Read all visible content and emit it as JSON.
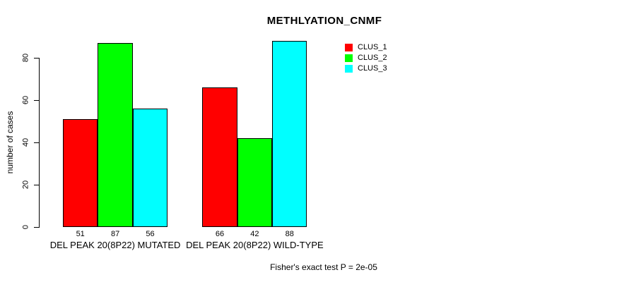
{
  "chart_data": {
    "type": "bar",
    "title": "METHLYATION_CNMF",
    "ylabel": "number of cases",
    "xlabel": "",
    "categories": [
      "DEL PEAK 20(8P22) MUTATED",
      "DEL PEAK 20(8P22) WILD-TYPE"
    ],
    "series": [
      {
        "name": "CLUS_1",
        "color": "#ff0000",
        "values": [
          51,
          66
        ]
      },
      {
        "name": "CLUS_2",
        "color": "#00ff00",
        "values": [
          87,
          42
        ]
      },
      {
        "name": "CLUS_3",
        "color": "#00ffff",
        "values": [
          56,
          88
        ]
      }
    ],
    "yticks": [
      0,
      20,
      40,
      60,
      80
    ],
    "ylim": [
      0,
      93
    ],
    "grid": false,
    "bar_value_labels": true,
    "legend_position": "top-right",
    "legend_entries": [
      "CLUS_1",
      "CLUS_2",
      "CLUS_3"
    ],
    "annotation": "Fisher's exact test P = 2e-05",
    "colors": {
      "bar_border": "#000000",
      "axis": "#000000",
      "background": "#ffffff",
      "text": "#000000"
    }
  }
}
